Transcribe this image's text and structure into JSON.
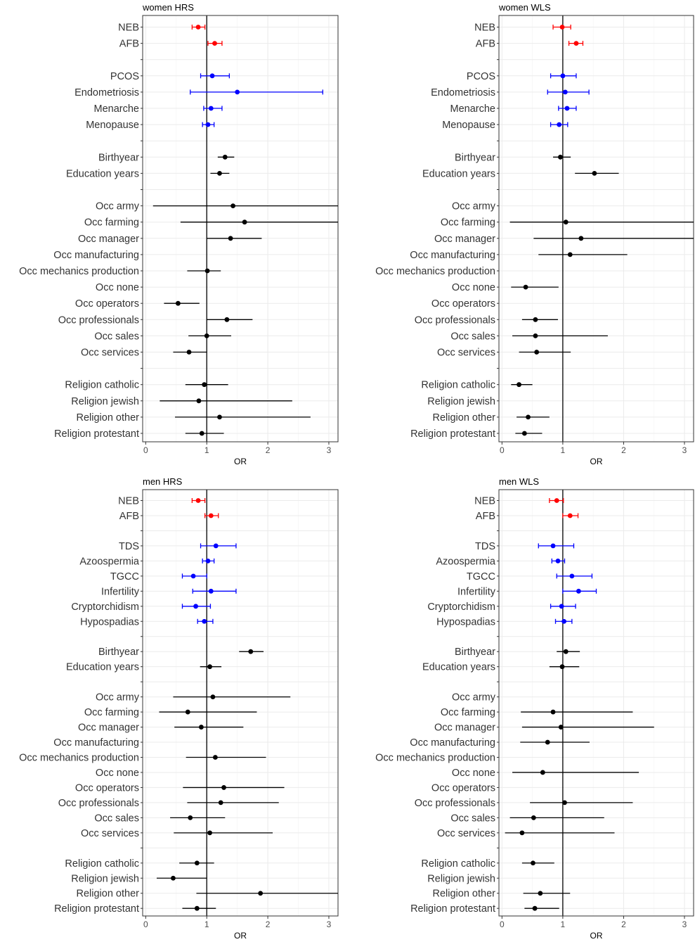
{
  "colors": {
    "reproductive": "#ff0000",
    "health": "#0000ff",
    "covariate": "#000000"
  },
  "chart_data": [
    {
      "type": "forest",
      "title": "women HRS",
      "xlabel": "OR",
      "xlim": [
        -0.05,
        3.15
      ],
      "xticks": [
        0,
        1,
        2,
        3
      ],
      "rows": [
        {
          "label": "NEB",
          "group": "reproductive",
          "est": 0.86,
          "lo": 0.76,
          "hi": 0.97
        },
        {
          "label": "AFB",
          "group": "reproductive",
          "est": 1.13,
          "lo": 1.02,
          "hi": 1.25
        },
        {
          "label": "",
          "group": "blank"
        },
        {
          "label": "PCOS",
          "group": "health",
          "est": 1.09,
          "lo": 0.9,
          "hi": 1.37
        },
        {
          "label": "Endometriosis",
          "group": "health",
          "est": 1.5,
          "lo": 0.73,
          "hi": 2.9
        },
        {
          "label": "Menarche",
          "group": "health",
          "est": 1.07,
          "lo": 0.95,
          "hi": 1.25
        },
        {
          "label": "Menopause",
          "group": "health",
          "est": 1.02,
          "lo": 0.93,
          "hi": 1.12
        },
        {
          "label": "",
          "group": "blank"
        },
        {
          "label": "Birthyear",
          "group": "covariate",
          "est": 1.3,
          "lo": 1.18,
          "hi": 1.45
        },
        {
          "label": "Education years",
          "group": "covariate",
          "est": 1.21,
          "lo": 1.06,
          "hi": 1.37
        },
        {
          "label": "",
          "group": "blank"
        },
        {
          "label": "Occ army",
          "group": "covariate",
          "est": 1.43,
          "lo": 0.12,
          "hi": 3.2
        },
        {
          "label": "Occ farming",
          "group": "covariate",
          "est": 1.62,
          "lo": 0.57,
          "hi": 3.2
        },
        {
          "label": "Occ manager",
          "group": "covariate",
          "est": 1.39,
          "lo": 1.0,
          "hi": 1.9
        },
        {
          "label": "Occ manufacturing",
          "group": "covariate"
        },
        {
          "label": "Occ mechanics production",
          "group": "covariate",
          "est": 1.01,
          "lo": 0.68,
          "hi": 1.23
        },
        {
          "label": "Occ none",
          "group": "covariate"
        },
        {
          "label": "Occ operators",
          "group": "covariate",
          "est": 0.53,
          "lo": 0.3,
          "hi": 0.88
        },
        {
          "label": "Occ professionals",
          "group": "covariate",
          "est": 1.33,
          "lo": 1.0,
          "hi": 1.75
        },
        {
          "label": "Occ sales",
          "group": "covariate",
          "est": 1.0,
          "lo": 0.7,
          "hi": 1.4
        },
        {
          "label": "Occ services",
          "group": "covariate",
          "est": 0.71,
          "lo": 0.45,
          "hi": 1.0
        },
        {
          "label": "",
          "group": "blank"
        },
        {
          "label": "Religion catholic",
          "group": "covariate",
          "est": 0.96,
          "lo": 0.65,
          "hi": 1.35
        },
        {
          "label": "Religion jewish",
          "group": "covariate",
          "est": 0.87,
          "lo": 0.23,
          "hi": 2.4
        },
        {
          "label": "Religion other",
          "group": "covariate",
          "est": 1.21,
          "lo": 0.48,
          "hi": 2.7
        },
        {
          "label": "Religion protestant",
          "group": "covariate",
          "est": 0.92,
          "lo": 0.65,
          "hi": 1.28
        }
      ]
    },
    {
      "type": "forest",
      "title": "women WLS",
      "xlabel": "OR",
      "xlim": [
        -0.05,
        3.15
      ],
      "xticks": [
        0,
        1,
        2,
        3
      ],
      "rows": [
        {
          "label": "NEB",
          "group": "reproductive",
          "est": 0.99,
          "lo": 0.84,
          "hi": 1.13
        },
        {
          "label": "AFB",
          "group": "reproductive",
          "est": 1.22,
          "lo": 1.1,
          "hi": 1.33
        },
        {
          "label": "",
          "group": "blank"
        },
        {
          "label": "PCOS",
          "group": "health",
          "est": 1.0,
          "lo": 0.8,
          "hi": 1.22
        },
        {
          "label": "Endometriosis",
          "group": "health",
          "est": 1.04,
          "lo": 0.75,
          "hi": 1.43
        },
        {
          "label": "Menarche",
          "group": "health",
          "est": 1.07,
          "lo": 0.93,
          "hi": 1.22
        },
        {
          "label": "Menopause",
          "group": "health",
          "est": 0.94,
          "lo": 0.8,
          "hi": 1.08
        },
        {
          "label": "",
          "group": "blank"
        },
        {
          "label": "Birthyear",
          "group": "covariate",
          "est": 0.96,
          "lo": 0.84,
          "hi": 1.13
        },
        {
          "label": "Education years",
          "group": "covariate",
          "est": 1.52,
          "lo": 1.2,
          "hi": 1.92
        },
        {
          "label": "",
          "group": "blank"
        },
        {
          "label": "Occ army",
          "group": "covariate"
        },
        {
          "label": "Occ farming",
          "group": "covariate",
          "est": 1.05,
          "lo": 0.13,
          "hi": 3.2
        },
        {
          "label": "Occ manager",
          "group": "covariate",
          "est": 1.3,
          "lo": 0.52,
          "hi": 3.2
        },
        {
          "label": "Occ manufacturing",
          "group": "covariate",
          "est": 1.12,
          "lo": 0.6,
          "hi": 2.06
        },
        {
          "label": "Occ mechanics production",
          "group": "covariate"
        },
        {
          "label": "Occ none",
          "group": "covariate",
          "est": 0.39,
          "lo": 0.15,
          "hi": 0.93
        },
        {
          "label": "Occ operators",
          "group": "covariate"
        },
        {
          "label": "Occ professionals",
          "group": "covariate",
          "est": 0.55,
          "lo": 0.33,
          "hi": 0.92
        },
        {
          "label": "Occ sales",
          "group": "covariate",
          "est": 0.55,
          "lo": 0.17,
          "hi": 1.74
        },
        {
          "label": "Occ services",
          "group": "covariate",
          "est": 0.57,
          "lo": 0.28,
          "hi": 1.13
        },
        {
          "label": "",
          "group": "blank"
        },
        {
          "label": "Religion catholic",
          "group": "covariate",
          "est": 0.28,
          "lo": 0.15,
          "hi": 0.5
        },
        {
          "label": "Religion jewish",
          "group": "covariate"
        },
        {
          "label": "Religion other",
          "group": "covariate",
          "est": 0.43,
          "lo": 0.24,
          "hi": 0.78
        },
        {
          "label": "Religion protestant",
          "group": "covariate",
          "est": 0.37,
          "lo": 0.22,
          "hi": 0.66
        }
      ]
    },
    {
      "type": "forest",
      "title": "men HRS",
      "xlabel": "OR",
      "xlim": [
        -0.05,
        3.15
      ],
      "xticks": [
        0,
        1,
        2,
        3
      ],
      "rows": [
        {
          "label": "NEB",
          "group": "reproductive",
          "est": 0.86,
          "lo": 0.76,
          "hi": 0.97
        },
        {
          "label": "AFB",
          "group": "reproductive",
          "est": 1.07,
          "lo": 0.97,
          "hi": 1.19
        },
        {
          "label": "",
          "group": "blank"
        },
        {
          "label": "TDS",
          "group": "health",
          "est": 1.15,
          "lo": 0.9,
          "hi": 1.48
        },
        {
          "label": "Azoospermia",
          "group": "health",
          "est": 1.02,
          "lo": 0.93,
          "hi": 1.12
        },
        {
          "label": "TGCC",
          "group": "health",
          "est": 0.78,
          "lo": 0.6,
          "hi": 1.0
        },
        {
          "label": "Infertility",
          "group": "health",
          "est": 1.07,
          "lo": 0.77,
          "hi": 1.48
        },
        {
          "label": "Cryptorchidism",
          "group": "health",
          "est": 0.82,
          "lo": 0.6,
          "hi": 1.06
        },
        {
          "label": "Hypospadias",
          "group": "health",
          "est": 0.96,
          "lo": 0.85,
          "hi": 1.1
        },
        {
          "label": "",
          "group": "blank"
        },
        {
          "label": "Birthyear",
          "group": "covariate",
          "est": 1.72,
          "lo": 1.53,
          "hi": 1.93
        },
        {
          "label": "Education years",
          "group": "covariate",
          "est": 1.05,
          "lo": 0.89,
          "hi": 1.24
        },
        {
          "label": "",
          "group": "blank"
        },
        {
          "label": "Occ army",
          "group": "covariate",
          "est": 1.1,
          "lo": 0.45,
          "hi": 2.37
        },
        {
          "label": "Occ farming",
          "group": "covariate",
          "est": 0.69,
          "lo": 0.22,
          "hi": 1.82
        },
        {
          "label": "Occ manager",
          "group": "covariate",
          "est": 0.91,
          "lo": 0.47,
          "hi": 1.6
        },
        {
          "label": "Occ manufacturing",
          "group": "covariate"
        },
        {
          "label": "Occ mechanics production",
          "group": "covariate",
          "est": 1.14,
          "lo": 0.66,
          "hi": 1.97
        },
        {
          "label": "Occ none",
          "group": "covariate"
        },
        {
          "label": "Occ operators",
          "group": "covariate",
          "est": 1.28,
          "lo": 0.61,
          "hi": 2.27
        },
        {
          "label": "Occ professionals",
          "group": "covariate",
          "est": 1.23,
          "lo": 0.68,
          "hi": 2.18
        },
        {
          "label": "Occ sales",
          "group": "covariate",
          "est": 0.73,
          "lo": 0.4,
          "hi": 1.3
        },
        {
          "label": "Occ services",
          "group": "covariate",
          "est": 1.05,
          "lo": 0.46,
          "hi": 2.08
        },
        {
          "label": "",
          "group": "blank"
        },
        {
          "label": "Religion catholic",
          "group": "covariate",
          "est": 0.84,
          "lo": 0.55,
          "hi": 1.12
        },
        {
          "label": "Religion jewish",
          "group": "covariate",
          "est": 0.45,
          "lo": 0.18,
          "hi": 1.0
        },
        {
          "label": "Religion other",
          "group": "covariate",
          "est": 1.88,
          "lo": 0.83,
          "hi": 3.2
        },
        {
          "label": "Religion protestant",
          "group": "covariate",
          "est": 0.84,
          "lo": 0.6,
          "hi": 1.15
        }
      ]
    },
    {
      "type": "forest",
      "title": "men WLS",
      "xlabel": "OR",
      "xlim": [
        -0.05,
        3.15
      ],
      "xticks": [
        0,
        1,
        2,
        3
      ],
      "rows": [
        {
          "label": "NEB",
          "group": "reproductive",
          "est": 0.9,
          "lo": 0.78,
          "hi": 1.01
        },
        {
          "label": "AFB",
          "group": "reproductive",
          "est": 1.12,
          "lo": 1.0,
          "hi": 1.25
        },
        {
          "label": "",
          "group": "blank"
        },
        {
          "label": "TDS",
          "group": "health",
          "est": 0.84,
          "lo": 0.6,
          "hi": 1.18
        },
        {
          "label": "Azoospermia",
          "group": "health",
          "est": 0.92,
          "lo": 0.82,
          "hi": 1.03
        },
        {
          "label": "TGCC",
          "group": "health",
          "est": 1.15,
          "lo": 0.9,
          "hi": 1.48
        },
        {
          "label": "Infertility",
          "group": "health",
          "est": 1.26,
          "lo": 1.0,
          "hi": 1.55
        },
        {
          "label": "Cryptorchidism",
          "group": "health",
          "est": 0.98,
          "lo": 0.8,
          "hi": 1.21
        },
        {
          "label": "Hypospadias",
          "group": "health",
          "est": 1.02,
          "lo": 0.88,
          "hi": 1.15
        },
        {
          "label": "",
          "group": "blank"
        },
        {
          "label": "Birthyear",
          "group": "covariate",
          "est": 1.05,
          "lo": 0.9,
          "hi": 1.28
        },
        {
          "label": "Education years",
          "group": "covariate",
          "est": 0.99,
          "lo": 0.78,
          "hi": 1.27
        },
        {
          "label": "",
          "group": "blank"
        },
        {
          "label": "Occ army",
          "group": "covariate"
        },
        {
          "label": "Occ farming",
          "group": "covariate",
          "est": 0.84,
          "lo": 0.31,
          "hi": 2.15
        },
        {
          "label": "Occ manager",
          "group": "covariate",
          "est": 0.97,
          "lo": 0.33,
          "hi": 2.5
        },
        {
          "label": "Occ manufacturing",
          "group": "covariate",
          "est": 0.75,
          "lo": 0.3,
          "hi": 1.44
        },
        {
          "label": "Occ mechanics production",
          "group": "covariate"
        },
        {
          "label": "Occ none",
          "group": "covariate",
          "est": 0.67,
          "lo": 0.17,
          "hi": 2.25
        },
        {
          "label": "Occ operators",
          "group": "covariate"
        },
        {
          "label": "Occ professionals",
          "group": "covariate",
          "est": 1.03,
          "lo": 0.46,
          "hi": 2.15
        },
        {
          "label": "Occ sales",
          "group": "covariate",
          "est": 0.52,
          "lo": 0.13,
          "hi": 1.68
        },
        {
          "label": "Occ services",
          "group": "covariate",
          "est": 0.33,
          "lo": 0.05,
          "hi": 1.85
        },
        {
          "label": "",
          "group": "blank"
        },
        {
          "label": "Religion catholic",
          "group": "covariate",
          "est": 0.51,
          "lo": 0.33,
          "hi": 0.86
        },
        {
          "label": "Religion jewish",
          "group": "covariate"
        },
        {
          "label": "Religion other",
          "group": "covariate",
          "est": 0.63,
          "lo": 0.35,
          "hi": 1.12
        },
        {
          "label": "Religion protestant",
          "group": "covariate",
          "est": 0.54,
          "lo": 0.37,
          "hi": 0.94
        }
      ]
    }
  ]
}
